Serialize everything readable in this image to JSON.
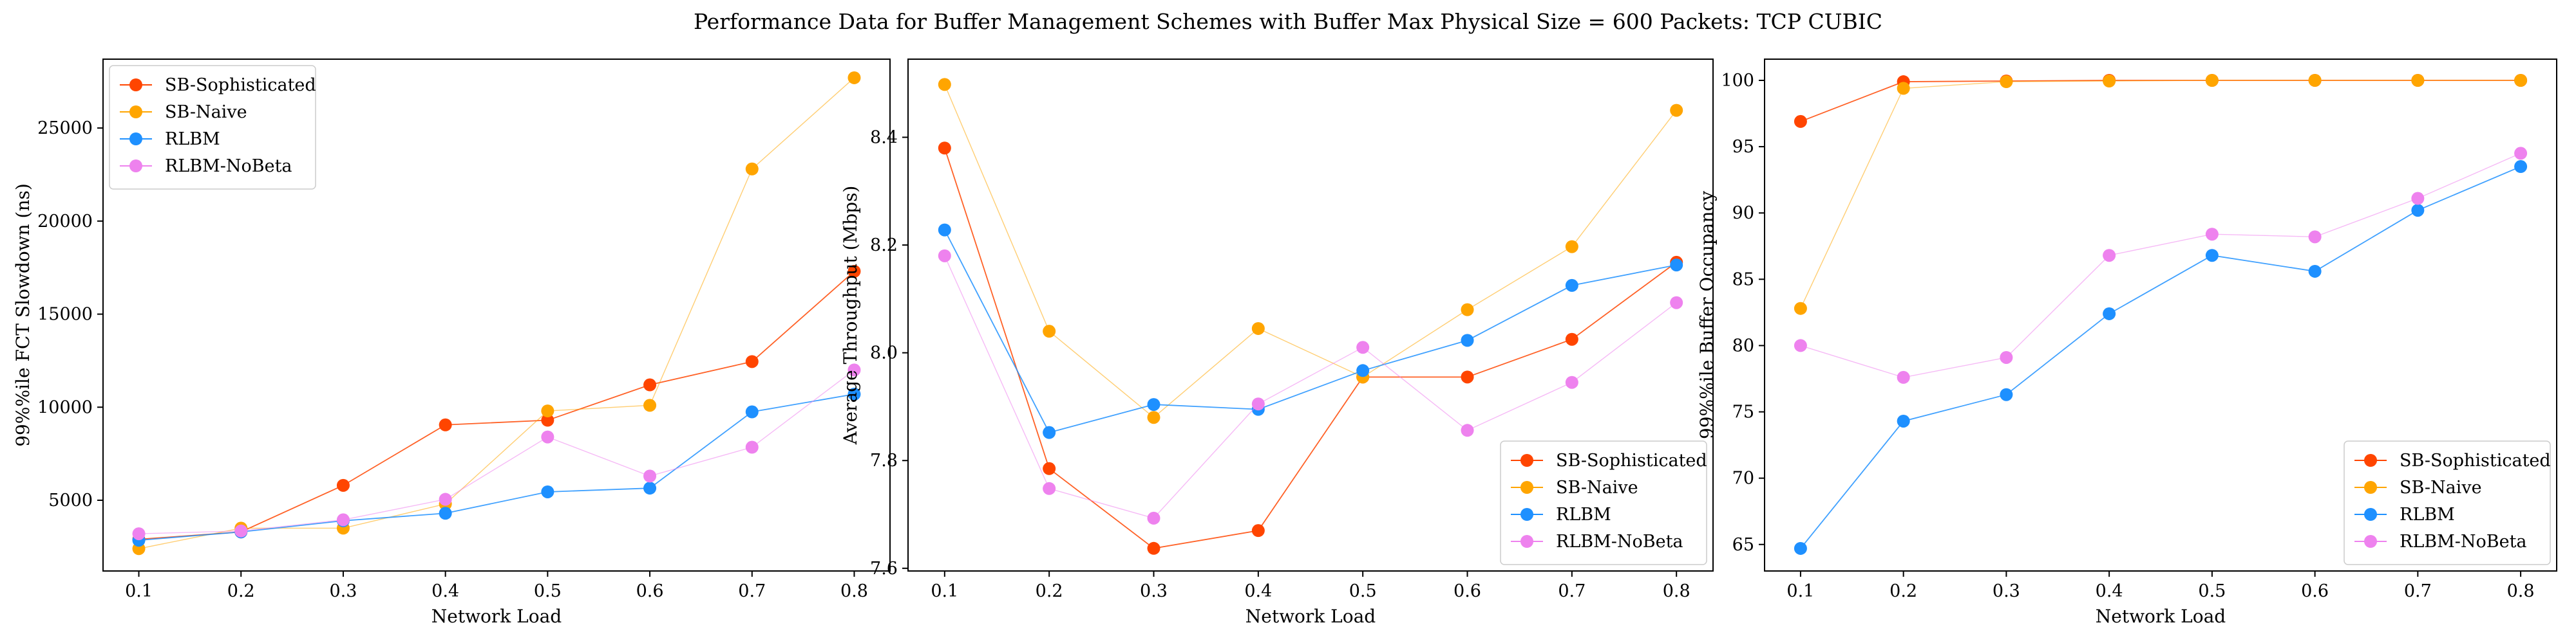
{
  "title": "Performance Data for Buffer Management Schemes with Buffer Max Physical Size = 600 Packets: TCP CUBIC",
  "series_styles": [
    {
      "name": "SB-Sophisticated",
      "color": "#ff4500"
    },
    {
      "name": "SB-Naive",
      "color": "#ffa500"
    },
    {
      "name": "RLBM",
      "color": "#1e90ff"
    },
    {
      "name": "RLBM-NoBeta",
      "color": "#ee82ee"
    }
  ],
  "chart_data": [
    {
      "type": "line",
      "xlabel": "Network Load",
      "ylabel": "99%%ile FCT Slowdown (ns)",
      "x": [
        0.1,
        0.2,
        0.3,
        0.4,
        0.5,
        0.6,
        0.7,
        0.8
      ],
      "x_ticks": [
        "0.1",
        "0.2",
        "0.3",
        "0.4",
        "0.5",
        "0.6",
        "0.7",
        "0.8"
      ],
      "xlim": [
        0.065,
        0.835
      ],
      "ylim": [
        1200,
        28700
      ],
      "y_ticks": [
        5000,
        10000,
        15000,
        20000,
        25000
      ],
      "y_tick_labels": [
        "5000",
        "10000",
        "15000",
        "20000",
        "25000"
      ],
      "legend_loc": "upper left",
      "series": [
        {
          "name": "SB-Sophisticated",
          "values": [
            2900,
            3300,
            5800,
            9050,
            9300,
            11200,
            12450,
            17300
          ]
        },
        {
          "name": "SB-Naive",
          "values": [
            2400,
            3500,
            3500,
            4800,
            9800,
            10100,
            22800,
            27700
          ]
        },
        {
          "name": "RLBM",
          "values": [
            2850,
            3300,
            3900,
            4300,
            5450,
            5650,
            9750,
            10700
          ]
        },
        {
          "name": "RLBM-NoBeta",
          "values": [
            3200,
            3350,
            3950,
            5050,
            8400,
            6300,
            7850,
            12000
          ]
        }
      ]
    },
    {
      "type": "line",
      "xlabel": "Network Load",
      "ylabel": "Average Throughput (Mbps)",
      "x": [
        0.1,
        0.2,
        0.3,
        0.4,
        0.5,
        0.6,
        0.7,
        0.8
      ],
      "x_ticks": [
        "0.1",
        "0.2",
        "0.3",
        "0.4",
        "0.5",
        "0.6",
        "0.7",
        "0.8"
      ],
      "xlim": [
        0.065,
        0.835
      ],
      "ylim": [
        7.595,
        8.545
      ],
      "y_ticks": [
        7.6,
        7.8,
        8.0,
        8.2,
        8.4
      ],
      "y_tick_labels": [
        "7.6",
        "7.8",
        "8.0",
        "8.2",
        "8.4"
      ],
      "legend_loc": "lower right",
      "series": [
        {
          "name": "SB-Sophisticated",
          "values": [
            8.38,
            7.785,
            7.637,
            7.67,
            7.955,
            7.955,
            8.025,
            8.168
          ]
        },
        {
          "name": "SB-Naive",
          "values": [
            8.498,
            8.04,
            7.88,
            8.045,
            7.955,
            8.08,
            8.197,
            8.45
          ]
        },
        {
          "name": "RLBM",
          "values": [
            8.228,
            7.852,
            7.904,
            7.895,
            7.967,
            8.023,
            8.125,
            8.163
          ]
        },
        {
          "name": "RLBM-NoBeta",
          "values": [
            8.18,
            7.748,
            7.693,
            7.905,
            8.01,
            7.856,
            7.945,
            8.093
          ]
        }
      ]
    },
    {
      "type": "line",
      "xlabel": "Network Load",
      "ylabel": "99%%ile Buffer Occupancy",
      "x": [
        0.1,
        0.2,
        0.3,
        0.4,
        0.5,
        0.6,
        0.7,
        0.8
      ],
      "x_ticks": [
        "0.1",
        "0.2",
        "0.3",
        "0.4",
        "0.5",
        "0.6",
        "0.7",
        "0.8"
      ],
      "xlim": [
        0.065,
        0.835
      ],
      "ylim": [
        63.0,
        101.6
      ],
      "y_ticks": [
        65,
        70,
        75,
        80,
        85,
        90,
        95,
        100
      ],
      "y_tick_labels": [
        "65",
        "70",
        "75",
        "80",
        "85",
        "90",
        "95",
        "100"
      ],
      "legend_loc": "lower right",
      "series": [
        {
          "name": "SB-Sophisticated",
          "values": [
            96.9,
            99.9,
            99.95,
            100,
            100,
            100,
            100,
            100
          ]
        },
        {
          "name": "SB-Naive",
          "values": [
            82.8,
            99.4,
            99.9,
            99.95,
            100,
            100,
            100,
            100
          ]
        },
        {
          "name": "RLBM",
          "values": [
            64.7,
            74.3,
            76.3,
            82.4,
            86.8,
            85.6,
            90.2,
            93.5
          ]
        },
        {
          "name": "RLBM-NoBeta",
          "values": [
            80.0,
            77.6,
            79.1,
            86.8,
            88.4,
            88.2,
            91.1,
            94.5
          ]
        }
      ]
    }
  ]
}
